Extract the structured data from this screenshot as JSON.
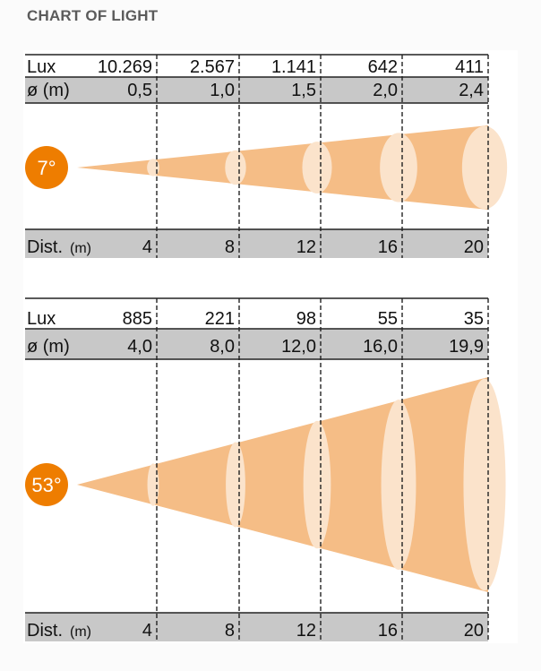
{
  "title": "CHART OF LIGHT",
  "colors": {
    "cone": "#f5bd86",
    "ellipse": "#fbe3cb",
    "badge": "#ee7d00",
    "row_gray": "#c8c8c8"
  },
  "charts": [
    {
      "angle_label": "7°",
      "lux_label": "Lux",
      "diameter_label": "ø (m)",
      "distance_label": "Dist.",
      "distance_unit": "(m)",
      "lux": [
        "10.269",
        "2.567",
        "1.141",
        "642",
        "411"
      ],
      "diameter": [
        "0,5",
        "1,0",
        "1,5",
        "2,0",
        "2,4"
      ],
      "distance": [
        "4",
        "8",
        "12",
        "16",
        "20"
      ],
      "diameter_values": [
        0.5,
        1.0,
        1.5,
        2.0,
        2.4
      ]
    },
    {
      "angle_label": "53°",
      "lux_label": "Lux",
      "diameter_label": "ø (m)",
      "distance_label": "Dist.",
      "distance_unit": "(m)",
      "lux": [
        "885",
        "221",
        "98",
        "55",
        "35"
      ],
      "diameter": [
        "4,0",
        "8,0",
        "12,0",
        "16,0",
        "19,9"
      ],
      "distance": [
        "4",
        "8",
        "12",
        "16",
        "20"
      ],
      "diameter_values": [
        4.0,
        8.0,
        12.0,
        16.0,
        19.9
      ]
    }
  ]
}
